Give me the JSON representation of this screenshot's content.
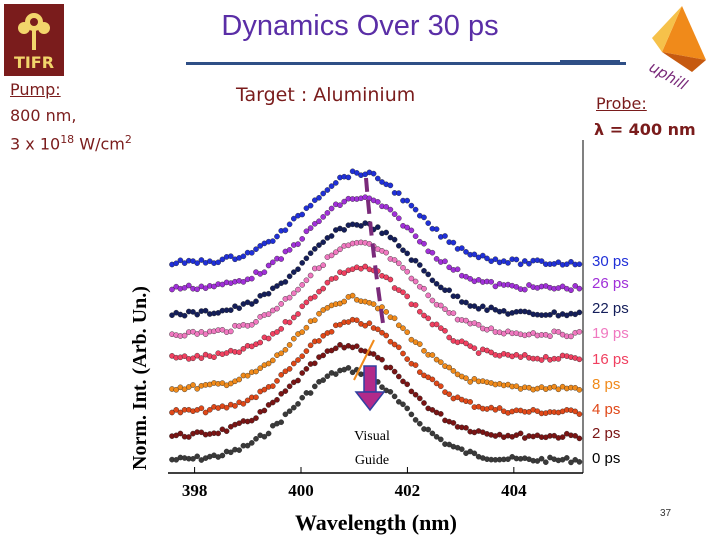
{
  "slide": {
    "title": "Dynamics Over 30 ps",
    "logo_left_text": "TIFR",
    "logo_right_text": "uphill",
    "pump_label": "Pump:",
    "pump_wavelength": "800 nm,",
    "pump_intensity_base": "3 x 10",
    "pump_intensity_exp": "18",
    "pump_intensity_unit": " W/cm",
    "pump_intensity_unit_exp": "2",
    "target": "Target : Aluminium",
    "probe_label": "Probe:",
    "probe_value": "λ = 400 nm",
    "page_number": "37",
    "colors": {
      "heading": "#5a2ea6",
      "text": "#7a1c1c",
      "rule": "#2f4f86",
      "guide": "#7a2a7a",
      "guide_arrow": "#b22a8a"
    }
  },
  "chart_data": {
    "type": "scatter",
    "xlabel": "Wavelength (nm)",
    "ylabel": "Norm. Int. (Arb. Un.)",
    "xlim": [
      397.5,
      405.3
    ],
    "xticks": [
      "398",
      "400",
      "402",
      "404"
    ],
    "guide_label_line1": "Visual",
    "guide_label_line2": "Guide",
    "series": [
      {
        "name": "0 ps",
        "color": "#3a3a3a",
        "center": 400.9
      },
      {
        "name": "2 ps",
        "color": "#7a1414",
        "center": 400.9
      },
      {
        "name": "4 ps",
        "color": "#e04818",
        "center": 401.0
      },
      {
        "name": "8 ps",
        "color": "#f08a1a",
        "center": 401.0
      },
      {
        "name": "16 ps",
        "color": "#f04060",
        "center": 401.1
      },
      {
        "name": "19 ps",
        "color": "#f078c0",
        "center": 401.1
      },
      {
        "name": "22 ps",
        "color": "#141e5a",
        "center": 401.1
      },
      {
        "name": "26 ps",
        "color": "#a030d8",
        "center": 401.1
      },
      {
        "name": "30 ps",
        "color": "#2030d8",
        "center": 401.1
      }
    ]
  }
}
